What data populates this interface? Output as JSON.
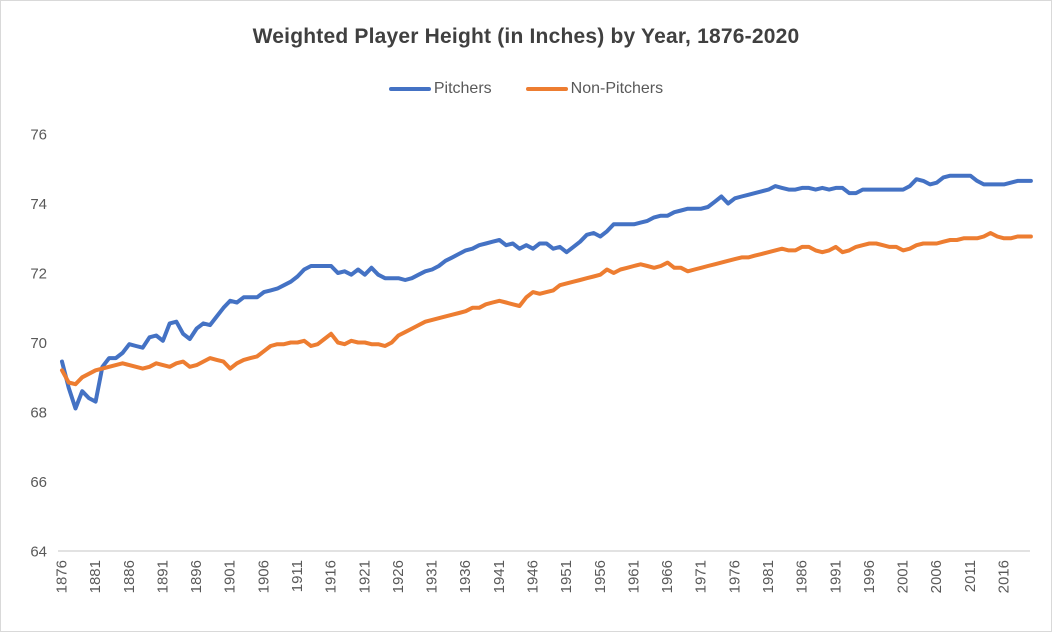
{
  "chart": {
    "title": "Weighted Player Height (in Inches) by Year, 1876-2020",
    "legend": [
      {
        "label": "Pitchers",
        "color": "#4472C4"
      },
      {
        "label": "Non-Pitchers",
        "color": "#ED7D31"
      }
    ],
    "axis_color": "#D9D9D9",
    "label_color": "#595959"
  },
  "chart_data": {
    "type": "line",
    "title": "Weighted Player Height (in Inches) by Year, 1876-2020",
    "xlabel": "",
    "ylabel": "",
    "x_start": 1876,
    "x_end": 2020,
    "x_step": 1,
    "x_tick_labels": [
      "1876",
      "1881",
      "1886",
      "1891",
      "1896",
      "1901",
      "1906",
      "1911",
      "1916",
      "1921",
      "1926",
      "1931",
      "1936",
      "1941",
      "1946",
      "1951",
      "1956",
      "1961",
      "1966",
      "1971",
      "1976",
      "1981",
      "1986",
      "1991",
      "1996",
      "2001",
      "2006",
      "2011",
      "2016"
    ],
    "y_ticks": [
      64,
      66,
      68,
      70,
      72,
      74,
      76
    ],
    "ylim": [
      64,
      76
    ],
    "grid": false,
    "legend_position": "top",
    "series": [
      {
        "name": "Pitchers",
        "color": "#4472C4",
        "values": [
          69.45,
          68.7,
          68.1,
          68.6,
          68.4,
          68.3,
          69.3,
          69.55,
          69.55,
          69.7,
          69.95,
          69.9,
          69.85,
          70.15,
          70.2,
          70.05,
          70.55,
          70.6,
          70.25,
          70.1,
          70.4,
          70.55,
          70.5,
          70.75,
          71.0,
          71.2,
          71.15,
          71.3,
          71.3,
          71.3,
          71.45,
          71.5,
          71.55,
          71.65,
          71.75,
          71.9,
          72.1,
          72.2,
          72.2,
          72.2,
          72.2,
          72.0,
          72.05,
          71.95,
          72.1,
          71.95,
          72.15,
          71.95,
          71.85,
          71.85,
          71.85,
          71.8,
          71.85,
          71.95,
          72.05,
          72.1,
          72.2,
          72.35,
          72.45,
          72.55,
          72.65,
          72.7,
          72.8,
          72.85,
          72.9,
          72.95,
          72.8,
          72.85,
          72.7,
          72.8,
          72.7,
          72.85,
          72.85,
          72.7,
          72.75,
          72.6,
          72.75,
          72.9,
          73.1,
          73.15,
          73.05,
          73.2,
          73.4,
          73.4,
          73.4,
          73.4,
          73.45,
          73.5,
          73.6,
          73.65,
          73.65,
          73.75,
          73.8,
          73.85,
          73.85,
          73.85,
          73.9,
          74.05,
          74.2,
          74.0,
          74.15,
          74.2,
          74.25,
          74.3,
          74.35,
          74.4,
          74.5,
          74.45,
          74.4,
          74.4,
          74.45,
          74.45,
          74.4,
          74.45,
          74.4,
          74.45,
          74.45,
          74.3,
          74.3,
          74.4,
          74.4,
          74.4,
          74.4,
          74.4,
          74.4,
          74.4,
          74.5,
          74.7,
          74.65,
          74.55,
          74.6,
          74.75,
          74.8,
          74.8,
          74.8,
          74.8,
          74.65,
          74.55,
          74.55,
          74.55,
          74.55,
          74.6,
          74.65,
          74.65,
          74.65
        ]
      },
      {
        "name": "Non-Pitchers",
        "color": "#ED7D31",
        "values": [
          69.2,
          68.85,
          68.8,
          69.0,
          69.1,
          69.2,
          69.25,
          69.3,
          69.35,
          69.4,
          69.35,
          69.3,
          69.25,
          69.3,
          69.4,
          69.35,
          69.3,
          69.4,
          69.45,
          69.3,
          69.35,
          69.45,
          69.55,
          69.5,
          69.45,
          69.25,
          69.4,
          69.5,
          69.55,
          69.6,
          69.75,
          69.9,
          69.95,
          69.95,
          70.0,
          70.0,
          70.05,
          69.9,
          69.95,
          70.1,
          70.25,
          70.0,
          69.95,
          70.05,
          70.0,
          70.0,
          69.95,
          69.95,
          69.9,
          70.0,
          70.2,
          70.3,
          70.4,
          70.5,
          70.6,
          70.65,
          70.7,
          70.75,
          70.8,
          70.85,
          70.9,
          71.0,
          71.0,
          71.1,
          71.15,
          71.2,
          71.15,
          71.1,
          71.05,
          71.3,
          71.45,
          71.4,
          71.45,
          71.5,
          71.65,
          71.7,
          71.75,
          71.8,
          71.85,
          71.9,
          71.95,
          72.1,
          72.0,
          72.1,
          72.15,
          72.2,
          72.25,
          72.2,
          72.15,
          72.2,
          72.3,
          72.15,
          72.15,
          72.05,
          72.1,
          72.15,
          72.2,
          72.25,
          72.3,
          72.35,
          72.4,
          72.45,
          72.45,
          72.5,
          72.55,
          72.6,
          72.65,
          72.7,
          72.65,
          72.65,
          72.75,
          72.75,
          72.65,
          72.6,
          72.65,
          72.75,
          72.6,
          72.65,
          72.75,
          72.8,
          72.85,
          72.85,
          72.8,
          72.75,
          72.75,
          72.65,
          72.7,
          72.8,
          72.85,
          72.85,
          72.85,
          72.9,
          72.95,
          72.95,
          73.0,
          73.0,
          73.0,
          73.05,
          73.15,
          73.05,
          73.0,
          73.0,
          73.05,
          73.05,
          73.05
        ]
      }
    ]
  }
}
